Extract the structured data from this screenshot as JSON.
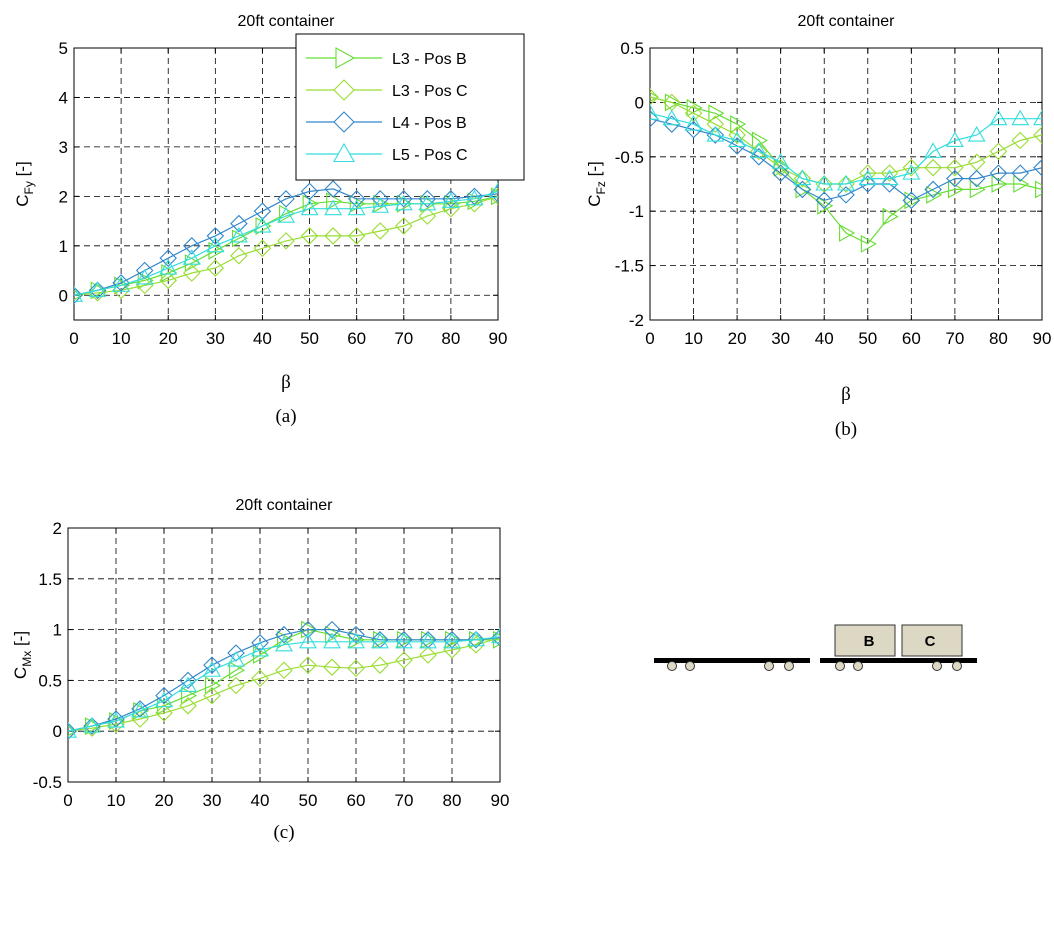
{
  "chart_data": [
    {
      "type": "line",
      "title": "20ft container",
      "xlabel": "β",
      "ylabel_main": "C",
      "ylabel_sub": "Fy",
      "ylabel_unit": " [-]",
      "caption": "(a)",
      "xlim": [
        0,
        90
      ],
      "ylim": [
        -0.5,
        5
      ],
      "xticks": [
        0,
        10,
        20,
        30,
        40,
        50,
        60,
        70,
        80,
        90
      ],
      "yticks": [
        0,
        1,
        2,
        3,
        4,
        5
      ],
      "ytick_labels": [
        "0",
        "1",
        "2",
        "3",
        "4",
        "5"
      ],
      "grid": true,
      "legend_position": "top-right",
      "x": [
        0,
        5,
        10,
        15,
        20,
        25,
        30,
        35,
        40,
        45,
        50,
        55,
        60,
        65,
        70,
        75,
        80,
        85,
        90
      ],
      "series": [
        {
          "name": "L3 - Pos B",
          "color": "#66dd33",
          "marker": "triangle-right",
          "values": [
            0,
            0.1,
            0.2,
            0.3,
            0.45,
            0.65,
            0.9,
            1.15,
            1.4,
            1.65,
            1.85,
            1.9,
            1.85,
            1.85,
            1.85,
            1.85,
            1.85,
            1.9,
            2.0
          ]
        },
        {
          "name": "L3 - Pos C",
          "color": "#99dd33",
          "marker": "diamond",
          "values": [
            0,
            0.05,
            0.1,
            0.2,
            0.3,
            0.45,
            0.55,
            0.8,
            0.95,
            1.1,
            1.2,
            1.2,
            1.2,
            1.3,
            1.4,
            1.6,
            1.75,
            1.85,
            2.0
          ]
        },
        {
          "name": "L4 - Pos B",
          "color": "#3388cc",
          "marker": "diamond",
          "values": [
            0,
            0.1,
            0.25,
            0.5,
            0.75,
            1.0,
            1.2,
            1.45,
            1.7,
            1.95,
            2.1,
            2.15,
            1.95,
            1.95,
            1.95,
            1.95,
            1.95,
            2.0,
            2.05
          ]
        },
        {
          "name": "L5 - Pos C",
          "color": "#33dddd",
          "marker": "triangle-up",
          "values": [
            0,
            0.1,
            0.2,
            0.35,
            0.55,
            0.75,
            1.0,
            1.2,
            1.4,
            1.6,
            1.75,
            1.75,
            1.75,
            1.8,
            1.85,
            1.85,
            1.9,
            1.95,
            2.1
          ]
        }
      ],
      "legend_entries": [
        "L3 - Pos B",
        "L3 - Pos C",
        "L4 - Pos B",
        "L5 - Pos C"
      ]
    },
    {
      "type": "line",
      "title": "20ft container",
      "xlabel": "β",
      "ylabel_main": "C",
      "ylabel_sub": "Fz",
      "ylabel_unit": " [-]",
      "caption": "(b)",
      "xlim": [
        0,
        90
      ],
      "ylim": [
        -2,
        0.5
      ],
      "xticks": [
        0,
        10,
        20,
        30,
        40,
        50,
        60,
        70,
        80,
        90
      ],
      "yticks": [
        -2,
        -1.5,
        -1,
        -0.5,
        0,
        0.5
      ],
      "ytick_labels": [
        "-2",
        "-1.5",
        "-1",
        "-0.5",
        "0",
        "0.5"
      ],
      "grid": true,
      "x": [
        0,
        5,
        10,
        15,
        20,
        25,
        30,
        35,
        40,
        45,
        50,
        55,
        60,
        65,
        70,
        75,
        80,
        85,
        90
      ],
      "series": [
        {
          "name": "L3 - Pos B",
          "color": "#66dd33",
          "marker": "triangle-right",
          "values": [
            0.05,
            0.0,
            -0.05,
            -0.1,
            -0.2,
            -0.35,
            -0.6,
            -0.8,
            -0.95,
            -1.2,
            -1.3,
            -1.05,
            -0.9,
            -0.85,
            -0.8,
            -0.8,
            -0.75,
            -0.75,
            -0.8
          ]
        },
        {
          "name": "L3 - Pos C",
          "color": "#99dd33",
          "marker": "diamond",
          "values": [
            0.05,
            0.0,
            -0.1,
            -0.2,
            -0.3,
            -0.45,
            -0.6,
            -0.7,
            -0.75,
            -0.75,
            -0.65,
            -0.65,
            -0.6,
            -0.6,
            -0.6,
            -0.55,
            -0.45,
            -0.35,
            -0.3
          ]
        },
        {
          "name": "L4 - Pos B",
          "color": "#3388cc",
          "marker": "diamond",
          "values": [
            -0.15,
            -0.2,
            -0.25,
            -0.3,
            -0.4,
            -0.5,
            -0.65,
            -0.8,
            -0.9,
            -0.85,
            -0.75,
            -0.75,
            -0.9,
            -0.8,
            -0.7,
            -0.7,
            -0.65,
            -0.65,
            -0.6
          ]
        },
        {
          "name": "L5 - Pos C",
          "color": "#33dddd",
          "marker": "triangle-up",
          "values": [
            -0.1,
            -0.15,
            -0.2,
            -0.3,
            -0.35,
            -0.45,
            -0.55,
            -0.7,
            -0.75,
            -0.75,
            -0.7,
            -0.7,
            -0.65,
            -0.45,
            -0.35,
            -0.3,
            -0.15,
            -0.15,
            -0.15
          ]
        }
      ]
    },
    {
      "type": "line",
      "title": "20ft container",
      "xlabel": "",
      "ylabel_main": "C",
      "ylabel_sub": "Mx",
      "ylabel_unit": " [-]",
      "caption": "(c)",
      "xlim": [
        0,
        90
      ],
      "ylim": [
        -0.5,
        2
      ],
      "xticks": [
        0,
        10,
        20,
        30,
        40,
        50,
        60,
        70,
        80,
        90
      ],
      "yticks": [
        -0.5,
        0,
        0.5,
        1,
        1.5,
        2
      ],
      "ytick_labels": [
        "-0.5",
        "0",
        "0.5",
        "1",
        "1.5",
        "2"
      ],
      "grid": true,
      "x": [
        0,
        5,
        10,
        15,
        20,
        25,
        30,
        35,
        40,
        45,
        50,
        55,
        60,
        65,
        70,
        75,
        80,
        85,
        90
      ],
      "series": [
        {
          "name": "L3 - Pos B",
          "color": "#66dd33",
          "marker": "triangle-right",
          "values": [
            0,
            0.05,
            0.1,
            0.2,
            0.25,
            0.35,
            0.45,
            0.6,
            0.75,
            0.9,
            1.0,
            0.95,
            0.9,
            0.9,
            0.9,
            0.9,
            0.9,
            0.9,
            0.9
          ]
        },
        {
          "name": "L3 - Pos C",
          "color": "#99dd33",
          "marker": "diamond",
          "values": [
            0,
            0.03,
            0.07,
            0.12,
            0.18,
            0.25,
            0.35,
            0.45,
            0.52,
            0.6,
            0.65,
            0.63,
            0.62,
            0.65,
            0.7,
            0.75,
            0.8,
            0.85,
            0.92
          ]
        },
        {
          "name": "L4 - Pos B",
          "color": "#3388cc",
          "marker": "diamond",
          "values": [
            0,
            0.05,
            0.12,
            0.22,
            0.35,
            0.5,
            0.65,
            0.77,
            0.87,
            0.95,
            1.0,
            1.0,
            0.95,
            0.9,
            0.9,
            0.9,
            0.9,
            0.9,
            0.92
          ]
        },
        {
          "name": "L5 - Pos C",
          "color": "#33dddd",
          "marker": "triangle-up",
          "values": [
            0,
            0.05,
            0.1,
            0.2,
            0.3,
            0.45,
            0.6,
            0.7,
            0.8,
            0.85,
            0.88,
            0.88,
            0.88,
            0.88,
            0.88,
            0.88,
            0.88,
            0.9,
            0.93
          ]
        }
      ]
    }
  ],
  "schematic": {
    "box_b_label": "B",
    "box_c_label": "C"
  }
}
